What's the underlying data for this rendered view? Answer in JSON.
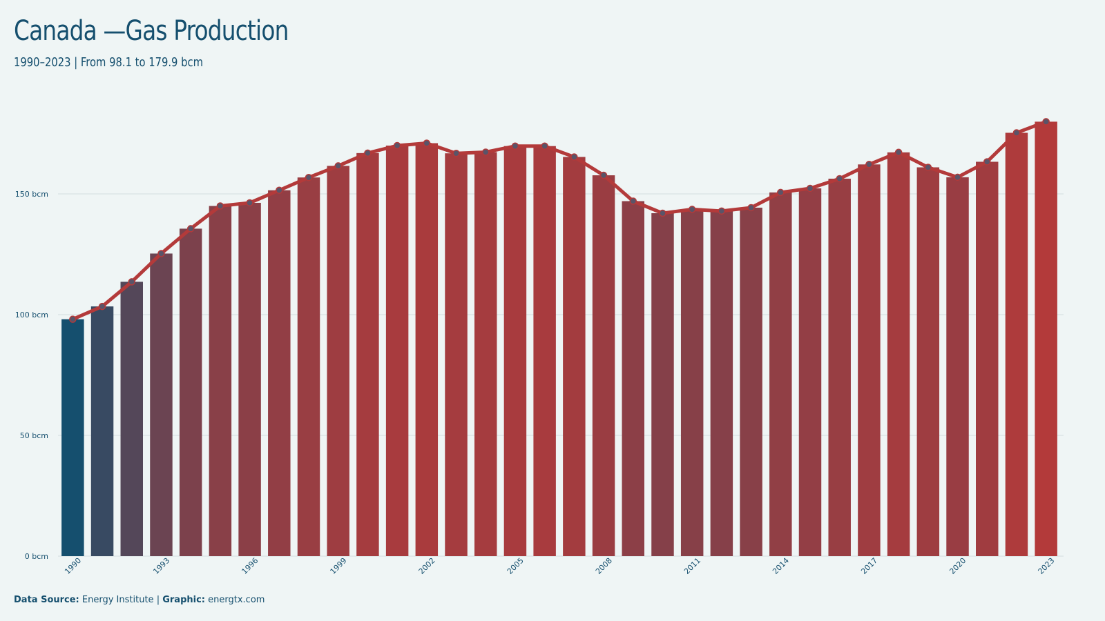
{
  "header": {
    "title": "Canada —Gas Production",
    "subtitle": "1990–2023 | From 98.1 to 179.9 bcm"
  },
  "footer": {
    "source_label": "Data Source:",
    "source_value": "Energy Institute",
    "separator": "|",
    "graphic_label": "Graphic:",
    "graphic_value": "energtx.com"
  },
  "colors": {
    "background": "#eff5f5",
    "text": "#154f6e",
    "bar_low": "#154f6e",
    "bar_high": "#b33a3a",
    "line": "#b33a3a",
    "marker_fill": "#5a5468",
    "grid": "#d3dde0"
  },
  "chart_data": {
    "type": "bar",
    "title": "Canada —Gas Production",
    "subtitle": "1990–2023 | From 98.1 to 179.9 bcm",
    "xlabel": "",
    "ylabel": "",
    "unit": "bcm",
    "ylim": [
      0,
      180
    ],
    "yticks": [
      0,
      50,
      100,
      150
    ],
    "ytick_labels": [
      "0 bcm",
      "50 bcm",
      "100 bcm",
      "150 bcm"
    ],
    "xtick_years": [
      1990,
      1993,
      1996,
      1999,
      2002,
      2005,
      2008,
      2011,
      2014,
      2017,
      2020,
      2023
    ],
    "grid": true,
    "overlay_line": true,
    "categories": [
      1990,
      1991,
      1992,
      1993,
      1994,
      1995,
      1996,
      1997,
      1998,
      1999,
      2000,
      2001,
      2002,
      2003,
      2004,
      2005,
      2006,
      2007,
      2008,
      2009,
      2010,
      2011,
      2012,
      2013,
      2014,
      2015,
      2016,
      2017,
      2018,
      2019,
      2020,
      2021,
      2022,
      2023
    ],
    "values": [
      98.1,
      103.4,
      113.6,
      125.3,
      135.6,
      145.0,
      146.3,
      151.5,
      156.8,
      161.6,
      166.9,
      170.0,
      171.0,
      166.8,
      167.3,
      169.8,
      169.8,
      165.3,
      157.7,
      147.0,
      142.0,
      143.6,
      142.9,
      144.3,
      150.6,
      152.3,
      156.3,
      162.2,
      167.2,
      161.0,
      156.9,
      163.3,
      175.3,
      179.9
    ]
  }
}
